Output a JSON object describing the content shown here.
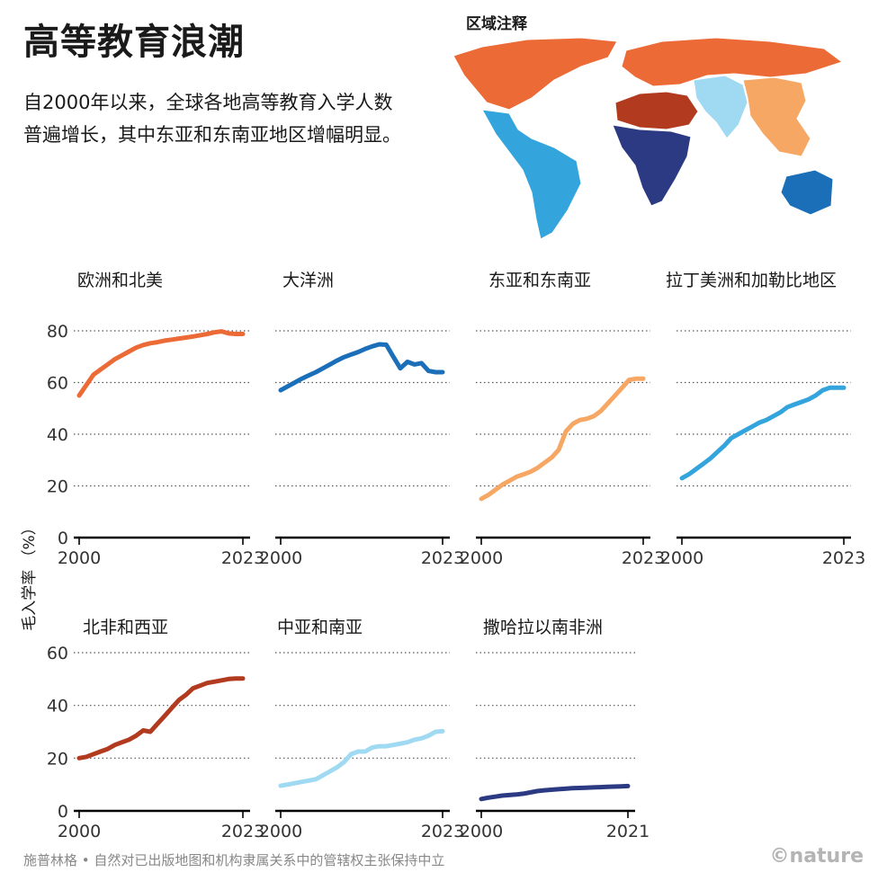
{
  "title": "高等教育浪潮",
  "subtitle": "自2000年以来，全球各地高等教育入学人数普遍增长，其中东亚和东南亚地区增幅明显。",
  "map_label": "区域注释",
  "footer": "施普林格 • 自然对已出版地图和机构隶属关系中的管辖权主张保持中立",
  "brand": "©nature",
  "y_axis_label": "毛入学率 （%）",
  "colors": {
    "europe_na": "#ec6a35",
    "oceania": "#1a6fb8",
    "east_asia": "#f6a763",
    "latam": "#34a4dd",
    "nafrica_wasia": "#b23a1f",
    "central_south_asia": "#9fd9f2",
    "ssa": "#2b3a82"
  },
  "chart_data": [
    {
      "type": "line",
      "title": "欧洲和北美",
      "color": "#ec6a35",
      "x_ticks": [
        "2000",
        "2023"
      ],
      "y_ticks": [
        0,
        20,
        40,
        60,
        80
      ],
      "ylim": [
        0,
        80
      ],
      "xlim": [
        2000,
        2023
      ],
      "x": [
        2000,
        2001,
        2002,
        2003,
        2004,
        2005,
        2006,
        2007,
        2008,
        2009,
        2010,
        2011,
        2012,
        2013,
        2014,
        2015,
        2016,
        2017,
        2018,
        2019,
        2020,
        2021,
        2022,
        2023
      ],
      "values": [
        55,
        59,
        63,
        65,
        67,
        69,
        70.5,
        72,
        73.5,
        74.5,
        75.2,
        75.6,
        76.2,
        76.6,
        77,
        77.4,
        77.8,
        78.3,
        78.8,
        79.4,
        79.8,
        79,
        78.8,
        78.8
      ]
    },
    {
      "type": "line",
      "title": "大洋洲",
      "color": "#1a6fb8",
      "x_ticks": [
        "2000",
        "2023"
      ],
      "y_ticks": [
        0,
        20,
        40,
        60,
        80
      ],
      "ylim": [
        0,
        80
      ],
      "xlim": [
        2000,
        2023
      ],
      "x": [
        2000,
        2001,
        2002,
        2003,
        2004,
        2005,
        2006,
        2007,
        2008,
        2009,
        2010,
        2011,
        2012,
        2013,
        2014,
        2015,
        2016,
        2017,
        2018,
        2019,
        2020,
        2021,
        2022,
        2023
      ],
      "values": [
        57,
        58.5,
        60,
        61.5,
        62.8,
        64,
        65.5,
        67,
        68.5,
        69.8,
        70.8,
        71.8,
        73,
        74,
        74.8,
        74.6,
        70,
        65.5,
        68,
        67,
        67.5,
        64.5,
        64,
        64
      ]
    },
    {
      "type": "line",
      "title": "东亚和东南亚",
      "color": "#f6a763",
      "x_ticks": [
        "2000",
        "2023"
      ],
      "y_ticks": [
        0,
        20,
        40,
        60,
        80
      ],
      "ylim": [
        0,
        80
      ],
      "xlim": [
        2000,
        2023
      ],
      "x": [
        2000,
        2001,
        2002,
        2003,
        2004,
        2005,
        2006,
        2007,
        2008,
        2009,
        2010,
        2011,
        2012,
        2013,
        2014,
        2015,
        2016,
        2017,
        2018,
        2019,
        2020,
        2021,
        2022,
        2023
      ],
      "values": [
        15,
        16.5,
        18.5,
        20.5,
        22,
        23.5,
        24.5,
        25.5,
        27,
        29,
        31,
        34,
        41,
        44,
        45.5,
        46,
        47,
        49,
        52,
        55,
        58,
        61,
        61.5,
        61.5
      ]
    },
    {
      "type": "line",
      "title": "拉丁美洲和加勒比地区",
      "color": "#34a4dd",
      "x_ticks": [
        "2000",
        "2023"
      ],
      "y_ticks": [
        0,
        20,
        40,
        60,
        80
      ],
      "ylim": [
        0,
        80
      ],
      "xlim": [
        2000,
        2023
      ],
      "x": [
        2000,
        2001,
        2002,
        2003,
        2004,
        2005,
        2006,
        2007,
        2008,
        2009,
        2010,
        2011,
        2012,
        2013,
        2014,
        2015,
        2016,
        2017,
        2018,
        2019,
        2020,
        2021,
        2022,
        2023
      ],
      "values": [
        23,
        24.5,
        26.5,
        28.5,
        30.5,
        33,
        35.5,
        38.5,
        40,
        41.5,
        43,
        44.5,
        45.5,
        47,
        48.5,
        50.5,
        51.5,
        52.5,
        53.5,
        55,
        57,
        58,
        58,
        58
      ]
    },
    {
      "type": "line",
      "title": "北非和西亚",
      "color": "#b23a1f",
      "x_ticks": [
        "2000",
        "2023"
      ],
      "y_ticks": [
        0,
        20,
        40,
        60
      ],
      "ylim": [
        0,
        60
      ],
      "xlim": [
        2000,
        2023
      ],
      "x": [
        2000,
        2001,
        2002,
        2003,
        2004,
        2005,
        2006,
        2007,
        2008,
        2009,
        2010,
        2011,
        2012,
        2013,
        2014,
        2015,
        2016,
        2017,
        2018,
        2019,
        2020,
        2021,
        2022,
        2023
      ],
      "values": [
        20,
        20.5,
        21.5,
        22.5,
        23.5,
        25,
        26,
        27,
        28.5,
        30.5,
        30,
        33,
        36,
        39,
        42,
        44,
        46.5,
        47.5,
        48.5,
        49,
        49.5,
        50,
        50.2,
        50.2
      ]
    },
    {
      "type": "line",
      "title": "中亚和南亚",
      "color": "#9fd9f2",
      "x_ticks": [
        "2000",
        "2023"
      ],
      "y_ticks": [
        0,
        20,
        40,
        60
      ],
      "ylim": [
        0,
        60
      ],
      "xlim": [
        2000,
        2023
      ],
      "x": [
        2000,
        2001,
        2002,
        2003,
        2004,
        2005,
        2006,
        2007,
        2008,
        2009,
        2010,
        2011,
        2012,
        2013,
        2014,
        2015,
        2016,
        2017,
        2018,
        2019,
        2020,
        2021,
        2022,
        2023
      ],
      "values": [
        9.5,
        10,
        10.5,
        11,
        11.5,
        12,
        13.5,
        15,
        16.5,
        18.5,
        21.5,
        22.5,
        22.5,
        24,
        24.5,
        24.5,
        25,
        25.5,
        26,
        27,
        27.5,
        28.5,
        30,
        30.2
      ]
    },
    {
      "type": "line",
      "title": "撒哈拉以南非洲",
      "color": "#2b3a82",
      "x_ticks": [
        "2000",
        "2021"
      ],
      "y_ticks": [
        0,
        20,
        40,
        60
      ],
      "ylim": [
        0,
        60
      ],
      "xlim": [
        2000,
        2021
      ],
      "x": [
        2000,
        2001,
        2002,
        2003,
        2004,
        2005,
        2006,
        2007,
        2008,
        2009,
        2010,
        2011,
        2012,
        2013,
        2014,
        2015,
        2016,
        2017,
        2018,
        2019,
        2020,
        2021
      ],
      "values": [
        4.5,
        5,
        5.4,
        5.8,
        6,
        6.2,
        6.5,
        7,
        7.5,
        7.8,
        8,
        8.2,
        8.4,
        8.6,
        8.7,
        8.8,
        8.9,
        9,
        9.1,
        9.2,
        9.3,
        9.4
      ]
    }
  ]
}
